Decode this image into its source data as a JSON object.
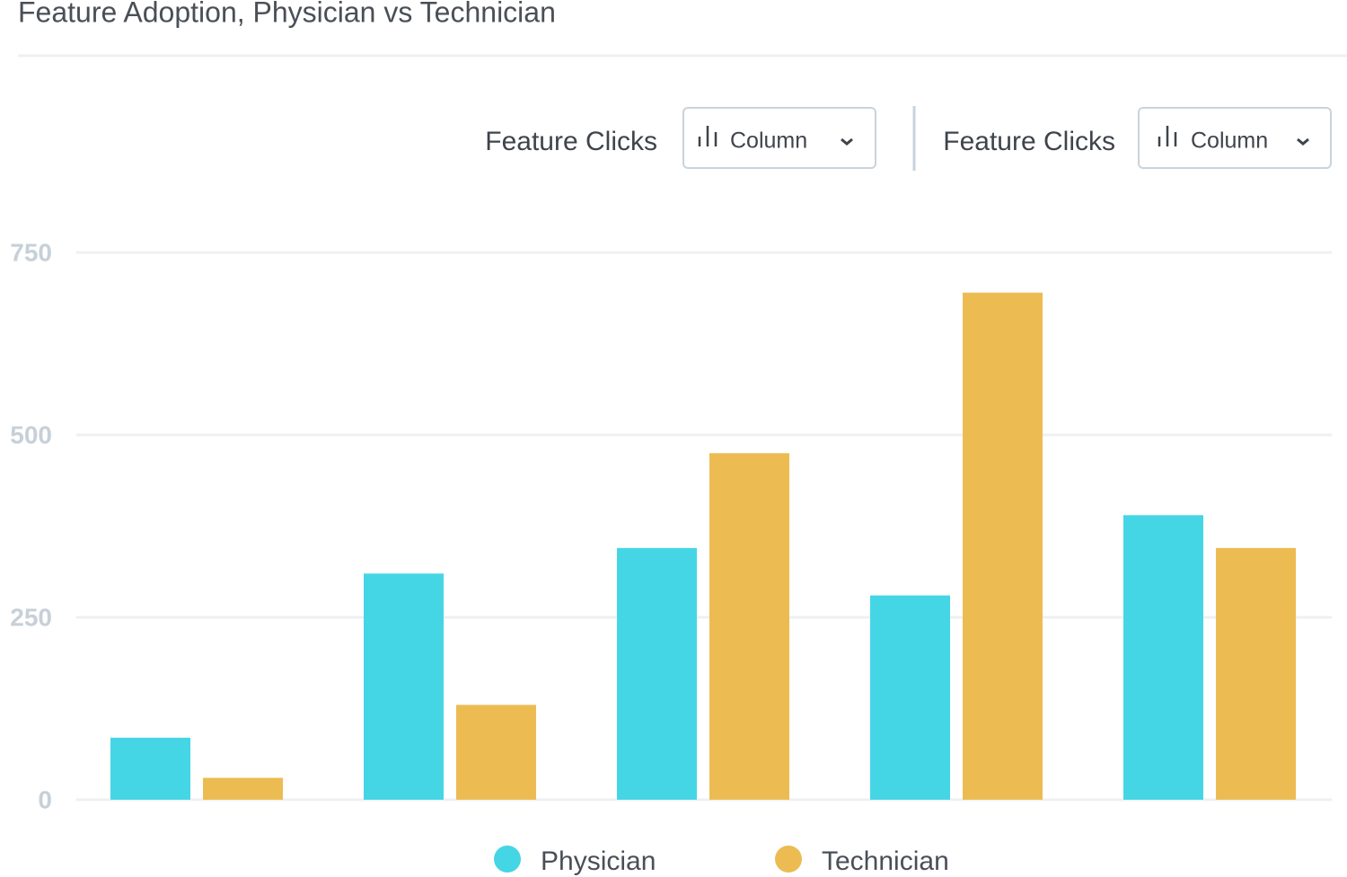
{
  "chart_data": {
    "type": "bar",
    "title": "Feature Adoption, Physician vs Technician",
    "categories": [
      null,
      null,
      null,
      null,
      null
    ],
    "series": [
      {
        "name": "Physician",
        "color": "#45d6e5",
        "values": [
          85,
          310,
          345,
          280,
          390
        ]
      },
      {
        "name": "Technician",
        "color": "#ecbc52",
        "values": [
          30,
          130,
          475,
          695,
          345
        ]
      }
    ],
    "ylim": [
      0,
      750
    ],
    "yticks": [
      0,
      250,
      500,
      750
    ],
    "grid": true,
    "legend": "bottom"
  },
  "controls": [
    {
      "label": "Feature Clicks",
      "select": "Column"
    },
    {
      "label": "Feature Clicks",
      "select": "Column"
    }
  ]
}
